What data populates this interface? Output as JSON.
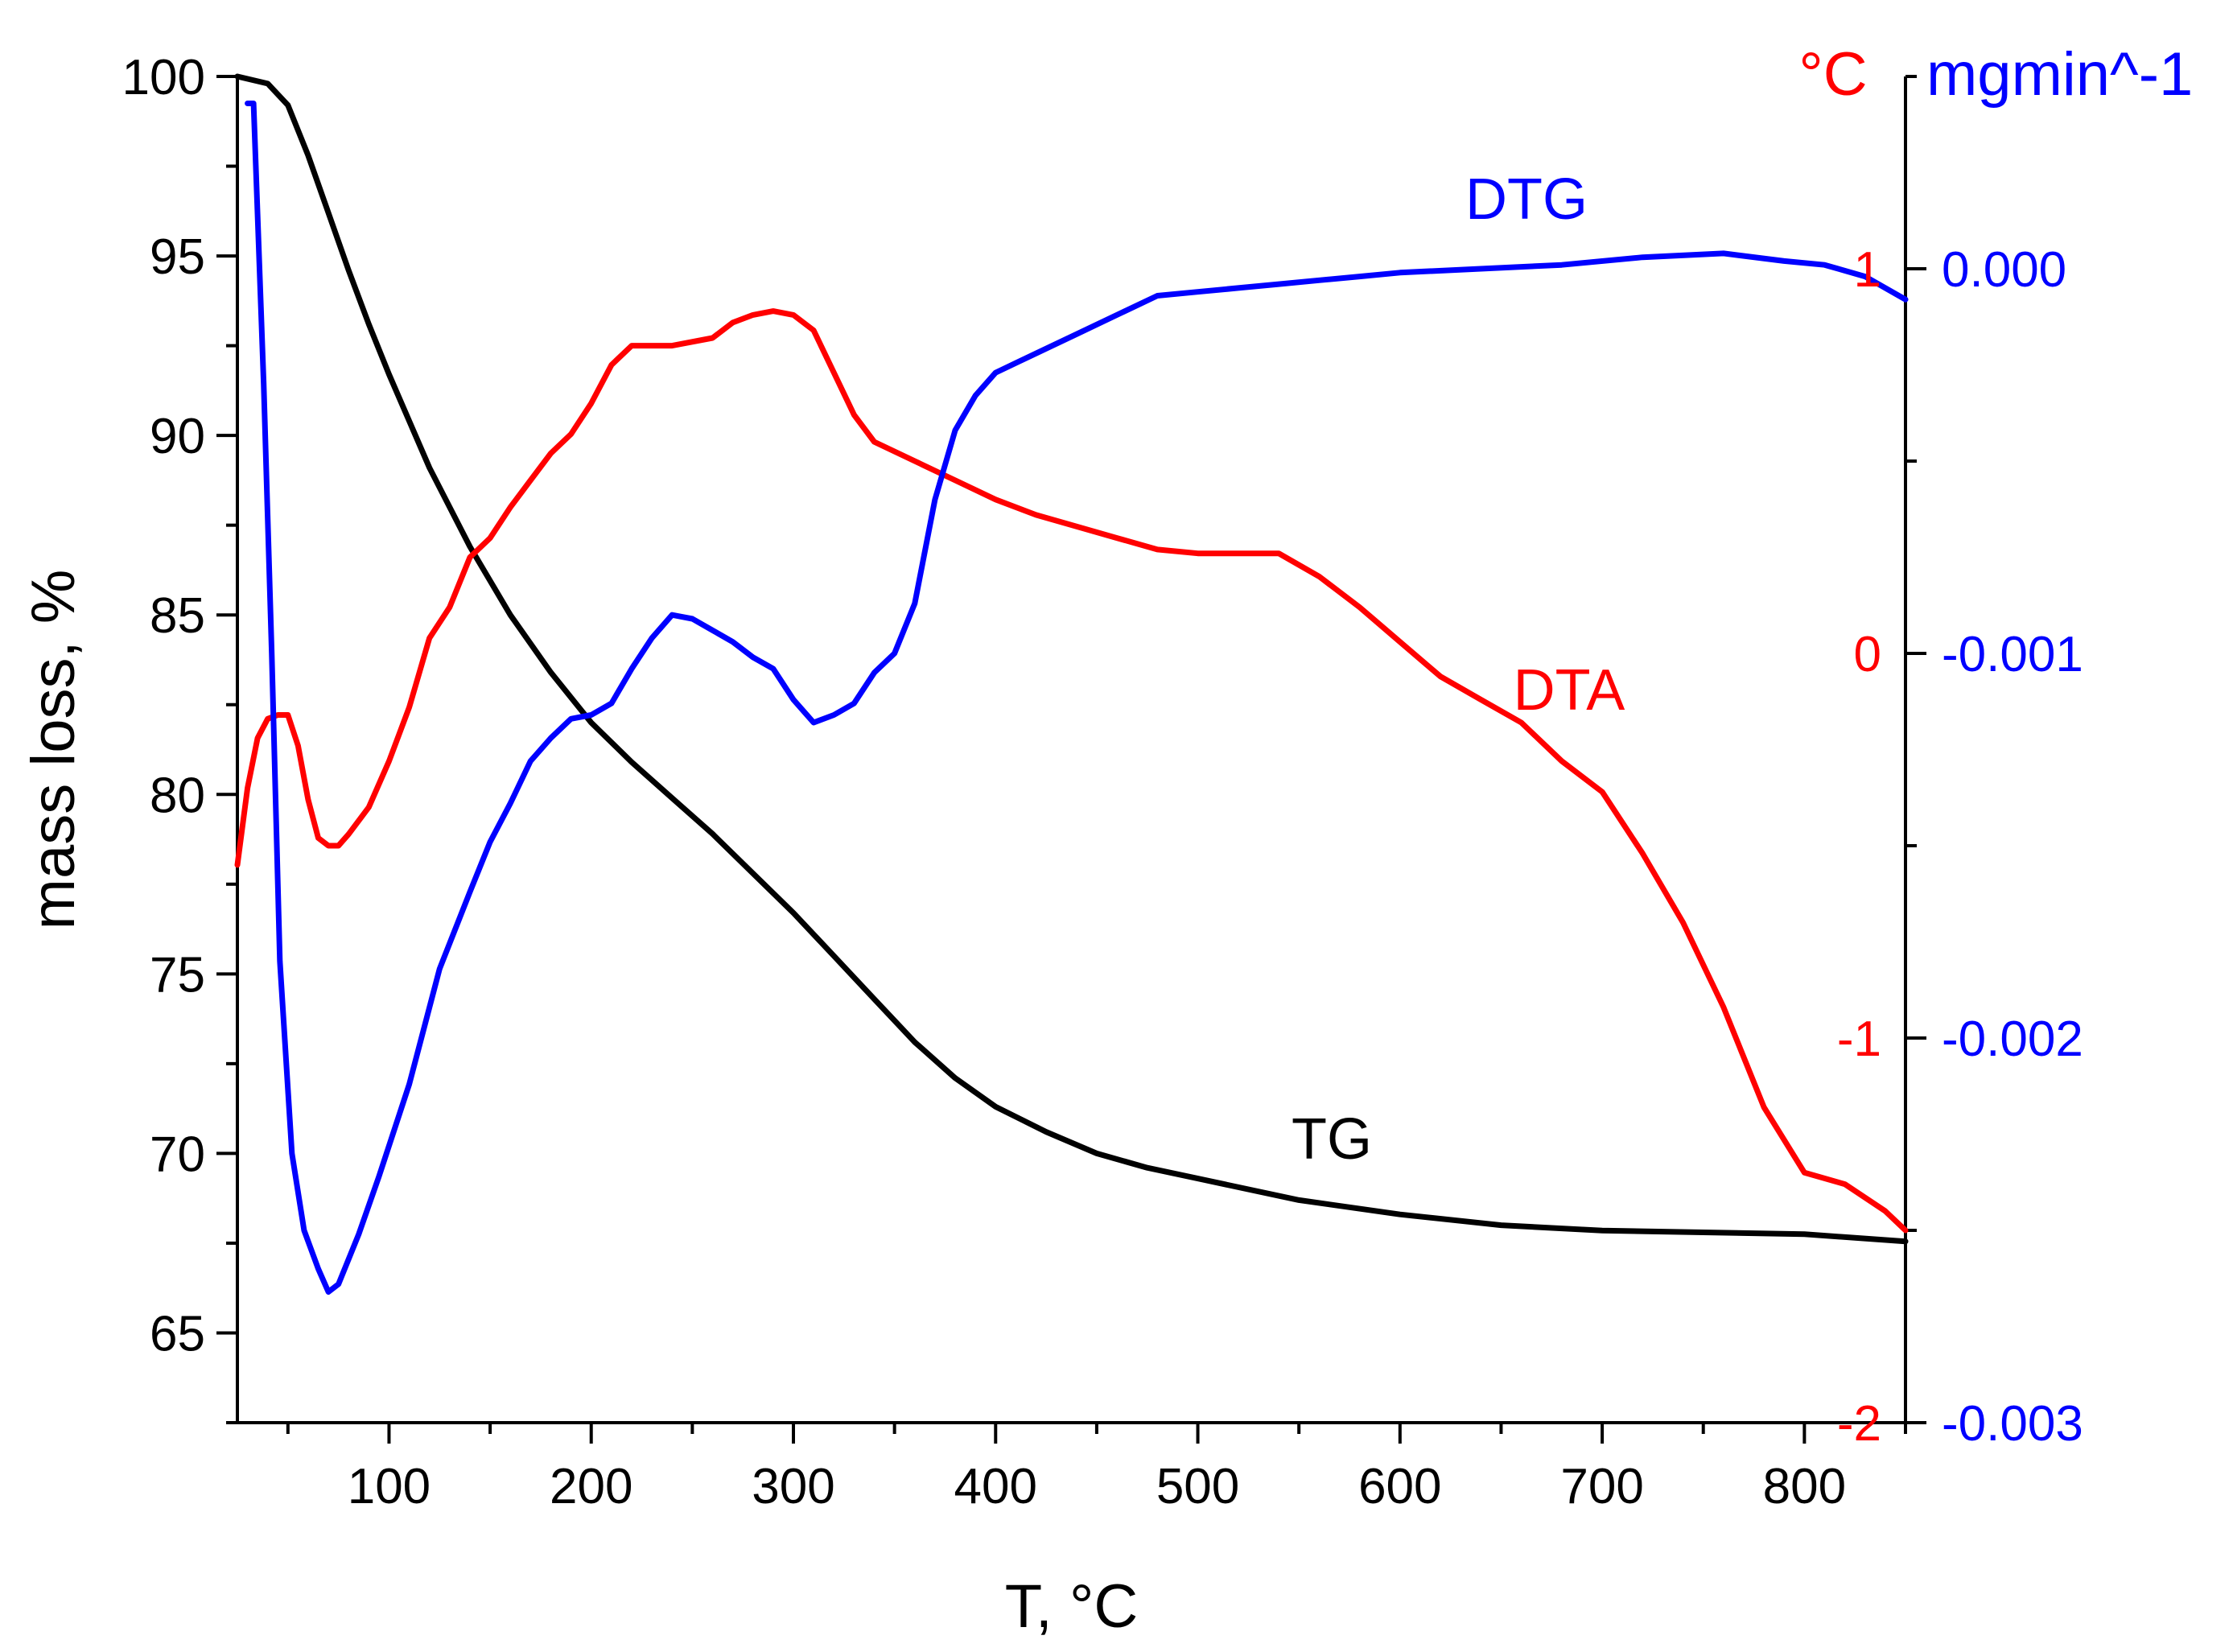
{
  "chart_data": {
    "type": "line",
    "xlabel": "T, °C",
    "x_ticks": [
      100,
      200,
      300,
      400,
      500,
      600,
      700,
      800
    ],
    "xlim": [
      25,
      850
    ],
    "axes": {
      "left": {
        "label": "mass loss, %",
        "ylim": [
          62.5,
          100
        ],
        "ticks": [
          65,
          70,
          75,
          80,
          85,
          90,
          95,
          100
        ],
        "color": "#000000"
      },
      "right_dta": {
        "unit_label": "°C",
        "ylim": [
          -2,
          1.5
        ],
        "ticks": [
          -2,
          -1,
          0,
          1
        ],
        "color": "#ff0000"
      },
      "right_dtg": {
        "unit_label": "mgmin^-1",
        "ylim": [
          -0.003,
          0.0005
        ],
        "ticks": [
          "-0.003",
          "-0.002",
          "-0.001",
          "0.000"
        ],
        "tick_values": [
          -0.003,
          -0.002,
          -0.001,
          0.0
        ],
        "color": "#0000ff"
      }
    },
    "series": [
      {
        "name": "TG",
        "axis": "left",
        "color": "#000000",
        "points": [
          [
            25,
            100
          ],
          [
            40,
            99.8
          ],
          [
            50,
            99.2
          ],
          [
            60,
            97.8
          ],
          [
            70,
            96.2
          ],
          [
            80,
            94.6
          ],
          [
            90,
            93.1
          ],
          [
            100,
            91.7
          ],
          [
            120,
            89.1
          ],
          [
            140,
            86.9
          ],
          [
            160,
            85.0
          ],
          [
            180,
            83.4
          ],
          [
            200,
            82.0
          ],
          [
            220,
            80.9
          ],
          [
            240,
            79.9
          ],
          [
            260,
            78.9
          ],
          [
            280,
            77.8
          ],
          [
            300,
            76.7
          ],
          [
            320,
            75.5
          ],
          [
            340,
            74.3
          ],
          [
            360,
            73.1
          ],
          [
            380,
            72.1
          ],
          [
            400,
            71.3
          ],
          [
            425,
            70.6
          ],
          [
            450,
            70.0
          ],
          [
            475,
            69.6
          ],
          [
            500,
            69.3
          ],
          [
            550,
            68.7
          ],
          [
            600,
            68.3
          ],
          [
            650,
            68.0
          ],
          [
            700,
            67.85
          ],
          [
            750,
            67.8
          ],
          [
            800,
            67.75
          ],
          [
            850,
            67.55
          ]
        ]
      },
      {
        "name": "DTA",
        "axis": "right_dta",
        "color": "#ff0000",
        "points": [
          [
            25,
            -0.55
          ],
          [
            30,
            -0.35
          ],
          [
            35,
            -0.22
          ],
          [
            40,
            -0.17
          ],
          [
            45,
            -0.16
          ],
          [
            50,
            -0.16
          ],
          [
            55,
            -0.24
          ],
          [
            60,
            -0.38
          ],
          [
            65,
            -0.48
          ],
          [
            70,
            -0.5
          ],
          [
            75,
            -0.5
          ],
          [
            80,
            -0.47
          ],
          [
            90,
            -0.4
          ],
          [
            100,
            -0.28
          ],
          [
            110,
            -0.14
          ],
          [
            120,
            0.04
          ],
          [
            130,
            0.12
          ],
          [
            140,
            0.25
          ],
          [
            150,
            0.3
          ],
          [
            160,
            0.38
          ],
          [
            170,
            0.45
          ],
          [
            180,
            0.52
          ],
          [
            190,
            0.57
          ],
          [
            200,
            0.65
          ],
          [
            210,
            0.75
          ],
          [
            220,
            0.8
          ],
          [
            240,
            0.8
          ],
          [
            260,
            0.82
          ],
          [
            270,
            0.86
          ],
          [
            280,
            0.88
          ],
          [
            290,
            0.89
          ],
          [
            300,
            0.88
          ],
          [
            310,
            0.84
          ],
          [
            320,
            0.73
          ],
          [
            330,
            0.62
          ],
          [
            340,
            0.55
          ],
          [
            360,
            0.5
          ],
          [
            380,
            0.45
          ],
          [
            400,
            0.4
          ],
          [
            420,
            0.36
          ],
          [
            440,
            0.33
          ],
          [
            460,
            0.3
          ],
          [
            480,
            0.27
          ],
          [
            500,
            0.26
          ],
          [
            520,
            0.26
          ],
          [
            540,
            0.26
          ],
          [
            560,
            0.2
          ],
          [
            580,
            0.12
          ],
          [
            600,
            0.03
          ],
          [
            620,
            -0.06
          ],
          [
            640,
            -0.12
          ],
          [
            660,
            -0.18
          ],
          [
            680,
            -0.28
          ],
          [
            700,
            -0.36
          ],
          [
            720,
            -0.52
          ],
          [
            740,
            -0.7
          ],
          [
            760,
            -0.92
          ],
          [
            780,
            -1.18
          ],
          [
            800,
            -1.35
          ],
          [
            820,
            -1.38
          ],
          [
            840,
            -1.45
          ],
          [
            850,
            -1.5
          ]
        ]
      },
      {
        "name": "DTG",
        "axis": "right_dtg",
        "color": "#0000ff",
        "points": [
          [
            30,
            0.00043
          ],
          [
            33,
            0.00043
          ],
          [
            38,
            -0.0003
          ],
          [
            42,
            -0.001
          ],
          [
            46,
            -0.0018
          ],
          [
            52,
            -0.0023
          ],
          [
            58,
            -0.0025
          ],
          [
            65,
            -0.0026
          ],
          [
            70,
            -0.00266
          ],
          [
            75,
            -0.00264
          ],
          [
            85,
            -0.00251
          ],
          [
            95,
            -0.00236
          ],
          [
            110,
            -0.00212
          ],
          [
            125,
            -0.00182
          ],
          [
            140,
            -0.00162
          ],
          [
            150,
            -0.00149
          ],
          [
            160,
            -0.00139
          ],
          [
            170,
            -0.00128
          ],
          [
            180,
            -0.00122
          ],
          [
            190,
            -0.00117
          ],
          [
            200,
            -0.00116
          ],
          [
            210,
            -0.00113
          ],
          [
            220,
            -0.00104
          ],
          [
            230,
            -0.00096
          ],
          [
            240,
            -0.0009
          ],
          [
            250,
            -0.00091
          ],
          [
            260,
            -0.00094
          ],
          [
            270,
            -0.00097
          ],
          [
            280,
            -0.00101
          ],
          [
            290,
            -0.00104
          ],
          [
            300,
            -0.00112
          ],
          [
            310,
            -0.00118
          ],
          [
            320,
            -0.00116
          ],
          [
            330,
            -0.00113
          ],
          [
            340,
            -0.00105
          ],
          [
            350,
            -0.001
          ],
          [
            360,
            -0.00087
          ],
          [
            370,
            -0.0006
          ],
          [
            380,
            -0.00042
          ],
          [
            390,
            -0.00033
          ],
          [
            400,
            -0.00027
          ],
          [
            420,
            -0.00022
          ],
          [
            440,
            -0.00017
          ],
          [
            460,
            -0.00012
          ],
          [
            480,
            -7e-05
          ],
          [
            500,
            -6e-05
          ],
          [
            520,
            -5e-05
          ],
          [
            540,
            -4e-05
          ],
          [
            560,
            -3e-05
          ],
          [
            580,
            -2e-05
          ],
          [
            600,
            -1e-05
          ],
          [
            640,
            0.0
          ],
          [
            680,
            1e-05
          ],
          [
            720,
            3e-05
          ],
          [
            760,
            4e-05
          ],
          [
            790,
            2e-05
          ],
          [
            810,
            1e-05
          ],
          [
            830,
            -2e-05
          ],
          [
            850,
            -8e-05
          ]
        ]
      }
    ]
  }
}
